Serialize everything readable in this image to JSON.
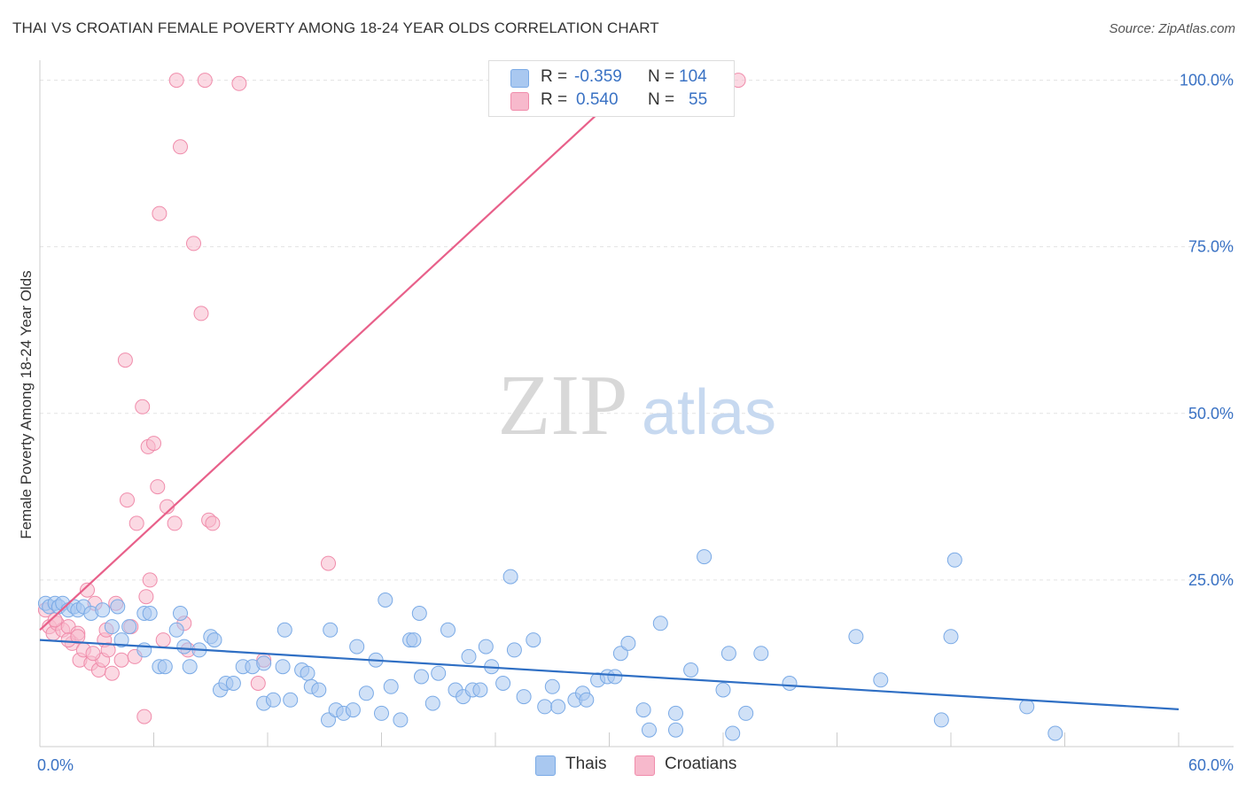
{
  "title": "THAI VS CROATIAN FEMALE POVERTY AMONG 18-24 YEAR OLDS CORRELATION CHART",
  "source": "Source: ZipAtlas.com",
  "watermark": {
    "zip": "ZIP",
    "atlas": "atlas"
  },
  "stats": [
    {
      "r_label": "R =",
      "r_value": "-0.359",
      "n_label": "N =",
      "n_value": "104"
    },
    {
      "r_label": "R =",
      "r_value": "0.540",
      "n_label": "N =",
      "n_value": "55"
    }
  ],
  "legend": [
    {
      "label": "Thais"
    },
    {
      "label": "Croatians"
    }
  ],
  "colors": {
    "thai_fill": "#a9c8f0",
    "thai_stroke": "#7aaae6",
    "thai_line": "#2f6fc4",
    "croat_fill": "#f7b9cc",
    "croat_stroke": "#f08cab",
    "croat_line": "#e8608a",
    "axis_text": "#3a72c4",
    "grid": "#e3e3e3"
  },
  "chart_data": {
    "type": "scatter",
    "title": "THAI VS CROATIAN FEMALE POVERTY AMONG 18-24 YEAR OLDS CORRELATION CHART",
    "xlabel": "",
    "ylabel": "Female Poverty Among 18-24 Year Olds",
    "xlim": [
      0,
      60
    ],
    "ylim": [
      0,
      103
    ],
    "x_tick_labels": [
      "0.0%",
      "60.0%"
    ],
    "y_ticks": [
      25,
      50,
      75,
      100
    ],
    "y_tick_labels": [
      "25.0%",
      "50.0%",
      "75.0%",
      "100.0%"
    ],
    "grid": true,
    "legend_position": "bottom-center",
    "series": [
      {
        "name": "Thais",
        "r": -0.359,
        "n": 104,
        "trend": {
          "x": [
            0,
            60
          ],
          "y": [
            16.0,
            5.6
          ]
        },
        "points": [
          [
            0.3,
            21.5
          ],
          [
            0.5,
            21.0
          ],
          [
            0.8,
            21.5
          ],
          [
            1.0,
            21.0
          ],
          [
            1.2,
            21.5
          ],
          [
            1.5,
            20.5
          ],
          [
            1.8,
            21.0
          ],
          [
            2.0,
            20.5
          ],
          [
            2.3,
            21.0
          ],
          [
            2.7,
            20.0
          ],
          [
            3.3,
            20.5
          ],
          [
            4.1,
            21.0
          ],
          [
            3.8,
            18.0
          ],
          [
            4.3,
            16.0
          ],
          [
            4.7,
            18.0
          ],
          [
            5.5,
            14.5
          ],
          [
            5.5,
            20.0
          ],
          [
            6.3,
            12.0
          ],
          [
            6.6,
            12.0
          ],
          [
            7.2,
            17.5
          ],
          [
            7.4,
            20.0
          ],
          [
            7.6,
            15.0
          ],
          [
            7.9,
            12.0
          ],
          [
            8.4,
            14.5
          ],
          [
            9.0,
            16.5
          ],
          [
            9.2,
            16.0
          ],
          [
            9.5,
            8.5
          ],
          [
            9.8,
            9.5
          ],
          [
            10.2,
            9.5
          ],
          [
            10.7,
            12.0
          ],
          [
            11.2,
            12.0
          ],
          [
            11.8,
            12.5
          ],
          [
            11.8,
            6.5
          ],
          [
            12.3,
            7.0
          ],
          [
            12.8,
            12.0
          ],
          [
            12.9,
            17.5
          ],
          [
            13.2,
            7.0
          ],
          [
            13.8,
            11.5
          ],
          [
            14.1,
            11.0
          ],
          [
            14.3,
            9.0
          ],
          [
            14.7,
            8.5
          ],
          [
            15.2,
            4.0
          ],
          [
            15.3,
            17.5
          ],
          [
            15.6,
            5.5
          ],
          [
            16.0,
            5.0
          ],
          [
            16.5,
            5.5
          ],
          [
            16.7,
            15.0
          ],
          [
            17.2,
            8.0
          ],
          [
            17.7,
            13.0
          ],
          [
            18.0,
            5.0
          ],
          [
            18.2,
            22.0
          ],
          [
            18.5,
            9.0
          ],
          [
            19.0,
            4.0
          ],
          [
            19.5,
            16.0
          ],
          [
            19.7,
            16.0
          ],
          [
            20.0,
            20.0
          ],
          [
            20.1,
            10.5
          ],
          [
            20.7,
            6.5
          ],
          [
            21.0,
            11.0
          ],
          [
            21.5,
            17.5
          ],
          [
            21.9,
            8.5
          ],
          [
            22.3,
            7.5
          ],
          [
            22.6,
            13.5
          ],
          [
            22.8,
            8.5
          ],
          [
            23.2,
            8.5
          ],
          [
            23.5,
            15.0
          ],
          [
            23.8,
            12.0
          ],
          [
            24.4,
            9.5
          ],
          [
            24.8,
            25.5
          ],
          [
            25.0,
            14.5
          ],
          [
            25.5,
            7.5
          ],
          [
            26.0,
            16.0
          ],
          [
            26.6,
            6.0
          ],
          [
            27.0,
            9.0
          ],
          [
            27.3,
            6.0
          ],
          [
            28.2,
            7.0
          ],
          [
            28.6,
            8.0
          ],
          [
            28.8,
            7.0
          ],
          [
            29.4,
            10.0
          ],
          [
            29.9,
            10.5
          ],
          [
            30.3,
            10.5
          ],
          [
            30.6,
            14.0
          ],
          [
            31.0,
            15.5
          ],
          [
            31.8,
            5.5
          ],
          [
            32.1,
            2.5
          ],
          [
            32.7,
            18.5
          ],
          [
            33.5,
            2.5
          ],
          [
            33.5,
            5.0
          ],
          [
            34.3,
            11.5
          ],
          [
            35.0,
            28.5
          ],
          [
            36.0,
            8.5
          ],
          [
            36.3,
            14.0
          ],
          [
            36.5,
            2.0
          ],
          [
            37.2,
            5.0
          ],
          [
            38.0,
            14.0
          ],
          [
            39.5,
            9.5
          ],
          [
            43.0,
            16.5
          ],
          [
            44.3,
            10.0
          ],
          [
            47.5,
            4.0
          ],
          [
            48.0,
            16.5
          ],
          [
            48.2,
            28.0
          ],
          [
            53.5,
            2.0
          ],
          [
            52.0,
            6.0
          ],
          [
            5.8,
            20.0
          ]
        ]
      },
      {
        "name": "Croatians",
        "r": 0.54,
        "n": 55,
        "trend": {
          "x": [
            0,
            31.3
          ],
          "y": [
            17.5,
            100
          ]
        },
        "points": [
          [
            0.3,
            20.5
          ],
          [
            0.5,
            18.0
          ],
          [
            0.7,
            17.0
          ],
          [
            0.9,
            18.5
          ],
          [
            1.2,
            17.5
          ],
          [
            1.5,
            18.0
          ],
          [
            1.7,
            15.5
          ],
          [
            2.0,
            17.0
          ],
          [
            2.1,
            13.0
          ],
          [
            2.3,
            14.5
          ],
          [
            2.5,
            23.5
          ],
          [
            2.7,
            12.5
          ],
          [
            2.9,
            21.5
          ],
          [
            3.1,
            11.5
          ],
          [
            3.3,
            13.0
          ],
          [
            3.4,
            16.0
          ],
          [
            3.5,
            17.5
          ],
          [
            3.8,
            11.0
          ],
          [
            4.0,
            21.5
          ],
          [
            4.3,
            13.0
          ],
          [
            4.5,
            58.0
          ],
          [
            4.6,
            37.0
          ],
          [
            4.8,
            18.0
          ],
          [
            5.0,
            13.5
          ],
          [
            5.1,
            33.5
          ],
          [
            5.4,
            51.0
          ],
          [
            5.5,
            4.5
          ],
          [
            5.6,
            22.5
          ],
          [
            5.7,
            45.0
          ],
          [
            5.8,
            25.0
          ],
          [
            6.0,
            45.5
          ],
          [
            6.2,
            39.0
          ],
          [
            6.3,
            80.0
          ],
          [
            6.7,
            36.0
          ],
          [
            7.1,
            33.5
          ],
          [
            7.2,
            100
          ],
          [
            7.4,
            90.0
          ],
          [
            7.6,
            18.5
          ],
          [
            8.1,
            75.5
          ],
          [
            8.5,
            65.0
          ],
          [
            8.7,
            100
          ],
          [
            8.9,
            34.0
          ],
          [
            9.1,
            33.5
          ],
          [
            10.5,
            99.5
          ],
          [
            11.5,
            9.5
          ],
          [
            11.8,
            13.0
          ],
          [
            15.2,
            27.5
          ],
          [
            36.8,
            100
          ],
          [
            1.5,
            16.0
          ],
          [
            2.0,
            16.5
          ],
          [
            2.8,
            14.0
          ],
          [
            3.6,
            14.5
          ],
          [
            6.5,
            16.0
          ],
          [
            7.8,
            14.5
          ],
          [
            0.8,
            19.0
          ]
        ]
      }
    ]
  }
}
